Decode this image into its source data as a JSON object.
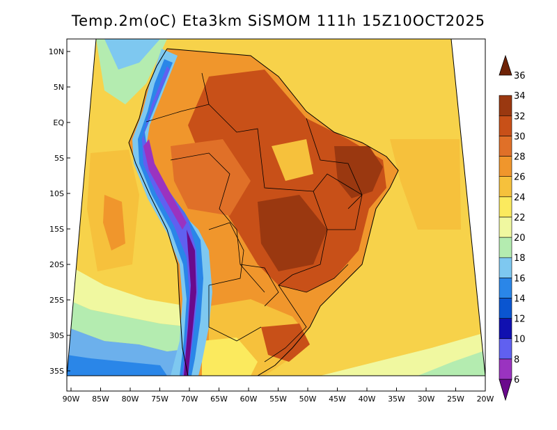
{
  "title": "Temp.2m(oC) Eta3km SiSMOM 111h 15Z10OCT2025",
  "lat_labels": [
    "10N",
    "5N",
    "EQ",
    "5S",
    "10S",
    "15S",
    "20S",
    "25S",
    "30S",
    "35S"
  ],
  "lon_labels": [
    "90W",
    "85W",
    "80W",
    "75W",
    "70W",
    "65W",
    "60W",
    "55W",
    "50W",
    "45W",
    "40W",
    "35W",
    "30W",
    "25W",
    "20W"
  ],
  "colorbar": {
    "labels": [
      "6",
      "8",
      "10",
      "12",
      "14",
      "16",
      "18",
      "20",
      "22",
      "24",
      "26",
      "28",
      "30",
      "32",
      "34",
      "36"
    ],
    "colors": [
      "#6a0a8c",
      "#9a33c0",
      "#6060f0",
      "#1010b0",
      "#0a55d0",
      "#2a86e8",
      "#7ec8f0",
      "#b4ecb0",
      "#f0f8a0",
      "#fbea5e",
      "#f6c13c",
      "#f0962c",
      "#e07028",
      "#c85018",
      "#9a3810",
      "#6e2206"
    ]
  }
}
